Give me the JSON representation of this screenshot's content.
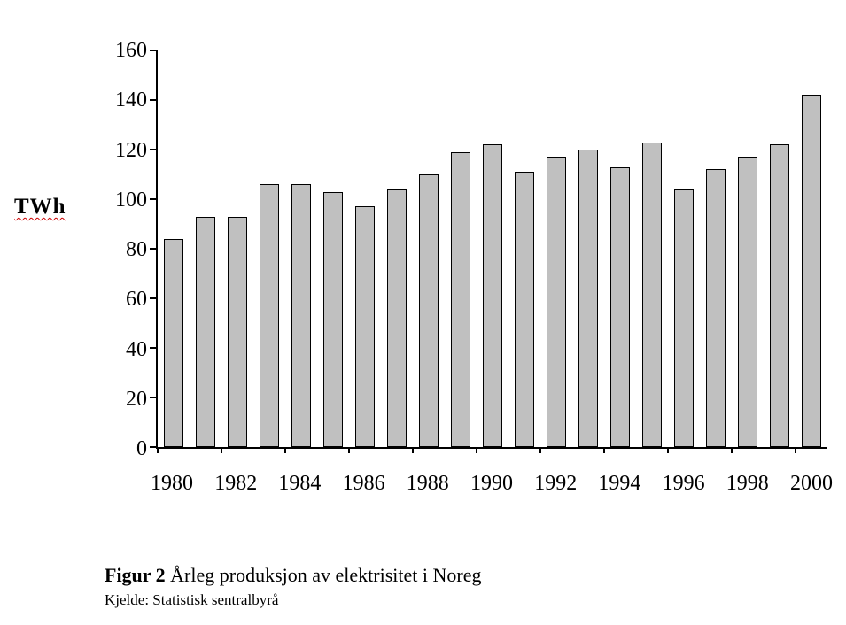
{
  "chart_data": {
    "type": "bar",
    "title": "",
    "ylabel": "TWh",
    "xlabel": "",
    "ylim": [
      0,
      160
    ],
    "yticks": [
      0,
      20,
      40,
      60,
      80,
      100,
      120,
      140,
      160
    ],
    "grid": false,
    "legend": "none",
    "bar_fill": "#c0c0c0",
    "bar_border": "#000000",
    "categories": [
      1980,
      1981,
      1982,
      1983,
      1984,
      1985,
      1986,
      1987,
      1988,
      1989,
      1990,
      1991,
      1992,
      1993,
      1994,
      1995,
      1996,
      1997,
      1998,
      1999,
      2000
    ],
    "values": [
      84,
      93,
      93,
      106,
      106,
      103,
      97,
      104,
      110,
      119,
      122,
      111,
      117,
      120,
      113,
      123,
      104,
      112,
      117,
      122,
      142
    ],
    "x_tick_labels": [
      "1980",
      "1982",
      "1984",
      "1986",
      "1988",
      "1990",
      "1992",
      "1994",
      "1996",
      "1998",
      "2000"
    ],
    "x_label_every": 2
  },
  "caption": {
    "figure_label": "Figur 2",
    "figure_text": " Årleg produksjon av elektrisitet i Noreg",
    "source": "Kjelde: Statistisk sentralbyrå"
  }
}
